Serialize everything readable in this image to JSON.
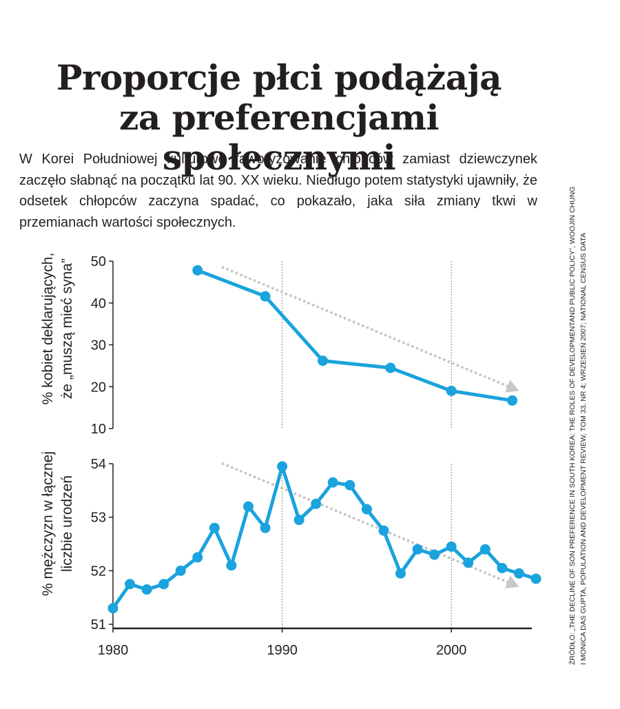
{
  "title": {
    "line1": "Proporcje płci podążają",
    "line2": "za preferencjami społecznymi"
  },
  "intro": "W Korei Południowej kulturowe faworyzowanie chłopców zamiast dziewczynek zaczęło słabnąć na początku lat 90. XX wieku. Niedługo potem statystyki ujawniły, że odsetek chłopców zaczyna spadać, co pokazało, jaka siła zmiany tkwi w przemianach wartości społecznych.",
  "source": {
    "line1": "Źródło: „The decline of son preference in South Korea: the roles of developmentand public policy”, Woojin Chung",
    "line2": "i Monica Das Gupta, Population and Development Review, tom 33, nr 4; wrzesień 2007; National Census Data"
  },
  "colors": {
    "series": "#1aa3dc",
    "trend": "#c8c8c8",
    "axis": "#231f20",
    "gridline": "#9a9a9a"
  },
  "chart_data": [
    {
      "type": "line",
      "ylabel": "% kobiet deklarujących, że „muszą mieć syna”",
      "ylabel_lines": [
        "% kobiet deklarujących,",
        "że „muszą mieć syna”"
      ],
      "xlim": [
        1980,
        2005
      ],
      "ylim": [
        10,
        50
      ],
      "yticks": [
        10,
        20,
        30,
        40,
        50
      ],
      "vertical_gridlines": [
        1990,
        2000
      ],
      "series": [
        {
          "x": [
            1985,
            1989,
            1992.4,
            1996.4,
            2000,
            2003.6
          ],
          "values": [
            47.8,
            41.6,
            26.2,
            24.5,
            19.0,
            16.7
          ]
        }
      ],
      "trend_arrow": {
        "from": [
          1986.5,
          48.5
        ],
        "to": [
          2004,
          19
        ]
      }
    },
    {
      "type": "line",
      "ylabel": "% mężczyzn w łącznej liczbie urodzeń",
      "ylabel_lines": [
        "% mężczyzn w łącznej",
        "liczbie urodzeń"
      ],
      "xlim": [
        1980,
        2005
      ],
      "ylim": [
        51,
        54
      ],
      "yticks": [
        51,
        52,
        53,
        54
      ],
      "xticks": [
        1980,
        1990,
        2000
      ],
      "vertical_gridlines": [
        1990,
        2000
      ],
      "series": [
        {
          "x": [
            1980,
            1981,
            1982,
            1983,
            1984,
            1985,
            1986,
            1987,
            1988,
            1989,
            1990,
            1991,
            1992,
            1993,
            1994,
            1995,
            1996,
            1997,
            1998,
            1999,
            2000,
            2001,
            2002,
            2003,
            2004,
            2005
          ],
          "values": [
            51.3,
            51.75,
            51.65,
            51.75,
            52.0,
            52.25,
            52.8,
            52.1,
            53.2,
            52.8,
            53.95,
            52.95,
            53.25,
            53.65,
            53.6,
            53.15,
            52.75,
            51.95,
            52.4,
            52.3,
            52.45,
            52.15,
            52.4,
            52.05,
            51.95,
            51.85
          ]
        }
      ],
      "trend_arrow": {
        "from": [
          1986.5,
          54.0
        ],
        "to": [
          2004,
          51.7
        ]
      }
    }
  ]
}
